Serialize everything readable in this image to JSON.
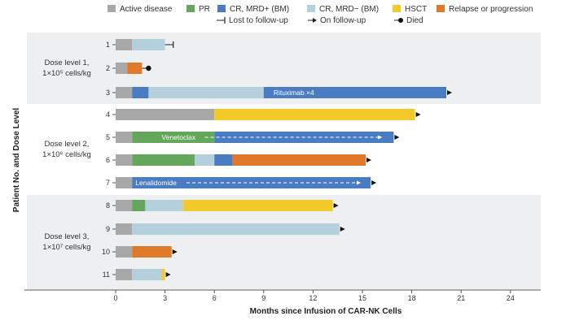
{
  "chart_data": {
    "type": "swimmer",
    "xlabel": "Months since Infusion of CAR-NK Cells",
    "ylabel": "Patient No. and Dose Level",
    "xlim": [
      0,
      26
    ],
    "xticks": [
      0,
      3,
      6,
      9,
      12,
      15,
      18,
      21,
      24
    ],
    "legend": [
      {
        "key": "active",
        "label": "Active disease",
        "color": "#a8a8a8",
        "kind": "box"
      },
      {
        "key": "pr",
        "label": "PR",
        "color": "#63a85a",
        "kind": "box"
      },
      {
        "key": "mrdpos",
        "label": "CR, MRD+ (BM)",
        "color": "#4a7cc4",
        "kind": "box"
      },
      {
        "key": "mrdneg",
        "label": "CR, MRD− (BM)",
        "color": "#b3d0dc",
        "kind": "box"
      },
      {
        "key": "hsct",
        "label": "HSCT",
        "color": "#f2cb2b",
        "kind": "box"
      },
      {
        "key": "relapse",
        "label": "Relapse or progression",
        "color": "#e07a2a",
        "kind": "box"
      },
      {
        "key": "lost",
        "label": "Lost to follow-up",
        "kind": "lost"
      },
      {
        "key": "onfollow",
        "label": "On follow-up",
        "kind": "arrow"
      },
      {
        "key": "died",
        "label": "Died",
        "kind": "dot"
      }
    ],
    "groups": [
      {
        "label_line1": "Dose level 1,",
        "label_line2": "1×10⁵ cells/kg",
        "patients": [
          "1",
          "2",
          "3"
        ]
      },
      {
        "label_line1": "Dose level 2,",
        "label_line2": "1×10⁶ cells/kg",
        "patients": [
          "4",
          "5",
          "6",
          "7"
        ]
      },
      {
        "label_line1": "Dose level 3,",
        "label_line2": "1×10⁷ cells/kg",
        "patients": [
          "8",
          "9",
          "10",
          "11"
        ]
      }
    ],
    "patients": [
      {
        "id": "1",
        "segments": [
          {
            "state": "active",
            "start": 0,
            "end": 1
          },
          {
            "state": "mrdneg",
            "start": 1,
            "end": 3
          }
        ],
        "end_marker": "lost",
        "end": 3.5
      },
      {
        "id": "2",
        "segments": [
          {
            "state": "active",
            "start": 0,
            "end": 0.7
          },
          {
            "state": "relapse",
            "start": 0.7,
            "end": 1.6
          }
        ],
        "end_marker": "died",
        "end": 2
      },
      {
        "id": "3",
        "segments": [
          {
            "state": "active",
            "start": 0,
            "end": 1
          },
          {
            "state": "mrdpos",
            "start": 1,
            "end": 2
          },
          {
            "state": "mrdneg",
            "start": 2,
            "end": 9
          },
          {
            "state": "mrdpos",
            "start": 9,
            "end": 20.1
          }
        ],
        "end_marker": "arrow",
        "end": 20.1,
        "annotation": {
          "text": "Rituximab ×4",
          "start": 9.6
        }
      },
      {
        "id": "4",
        "segments": [
          {
            "state": "active",
            "start": 0,
            "end": 6
          },
          {
            "state": "hsct",
            "start": 6,
            "end": 18.2
          }
        ],
        "end_marker": "arrow",
        "end": 18.2
      },
      {
        "id": "5",
        "segments": [
          {
            "state": "active",
            "start": 0,
            "end": 1
          },
          {
            "state": "pr",
            "start": 1,
            "end": 6
          },
          {
            "state": "mrdpos",
            "start": 6,
            "end": 16.9
          }
        ],
        "end_marker": "arrow",
        "end": 16.9,
        "annotation": {
          "text": "Venetoclax",
          "start": 2.8,
          "dashed_to": 16
        }
      },
      {
        "id": "6",
        "segments": [
          {
            "state": "active",
            "start": 0,
            "end": 1
          },
          {
            "state": "pr",
            "start": 1,
            "end": 4.8
          },
          {
            "state": "mrdneg",
            "start": 4.8,
            "end": 6
          },
          {
            "state": "mrdpos",
            "start": 6,
            "end": 7.1
          },
          {
            "state": "relapse",
            "start": 7.1,
            "end": 15.2
          }
        ],
        "end_marker": "arrow",
        "end": 15.2
      },
      {
        "id": "7",
        "segments": [
          {
            "state": "active",
            "start": 0,
            "end": 1
          },
          {
            "state": "mrdpos",
            "start": 1,
            "end": 15.5
          }
        ],
        "end_marker": "arrow",
        "end": 15.5,
        "annotation": {
          "text": "Lenalidomide",
          "start": 1.2,
          "dashed_to": 14.7
        }
      },
      {
        "id": "8",
        "segments": [
          {
            "state": "active",
            "start": 0,
            "end": 1
          },
          {
            "state": "pr",
            "start": 1,
            "end": 1.8
          },
          {
            "state": "mrdneg",
            "start": 1.8,
            "end": 4.1
          },
          {
            "state": "hsct",
            "start": 4.1,
            "end": 13.2
          }
        ],
        "end_marker": "arrow",
        "end": 13.2
      },
      {
        "id": "9",
        "segments": [
          {
            "state": "active",
            "start": 0,
            "end": 1
          },
          {
            "state": "mrdneg",
            "start": 1,
            "end": 13.6
          }
        ],
        "end_marker": "arrow",
        "end": 13.6
      },
      {
        "id": "10",
        "segments": [
          {
            "state": "active",
            "start": 0,
            "end": 1
          },
          {
            "state": "relapse",
            "start": 1,
            "end": 3.4
          }
        ],
        "end_marker": "arrow",
        "end": 3.4
      },
      {
        "id": "11",
        "segments": [
          {
            "state": "active",
            "start": 0,
            "end": 1
          },
          {
            "state": "mrdneg",
            "start": 1,
            "end": 2.8
          },
          {
            "state": "hsct",
            "start": 2.8,
            "end": 3.0
          }
        ],
        "end_marker": "arrow",
        "end": 3.0
      }
    ]
  }
}
